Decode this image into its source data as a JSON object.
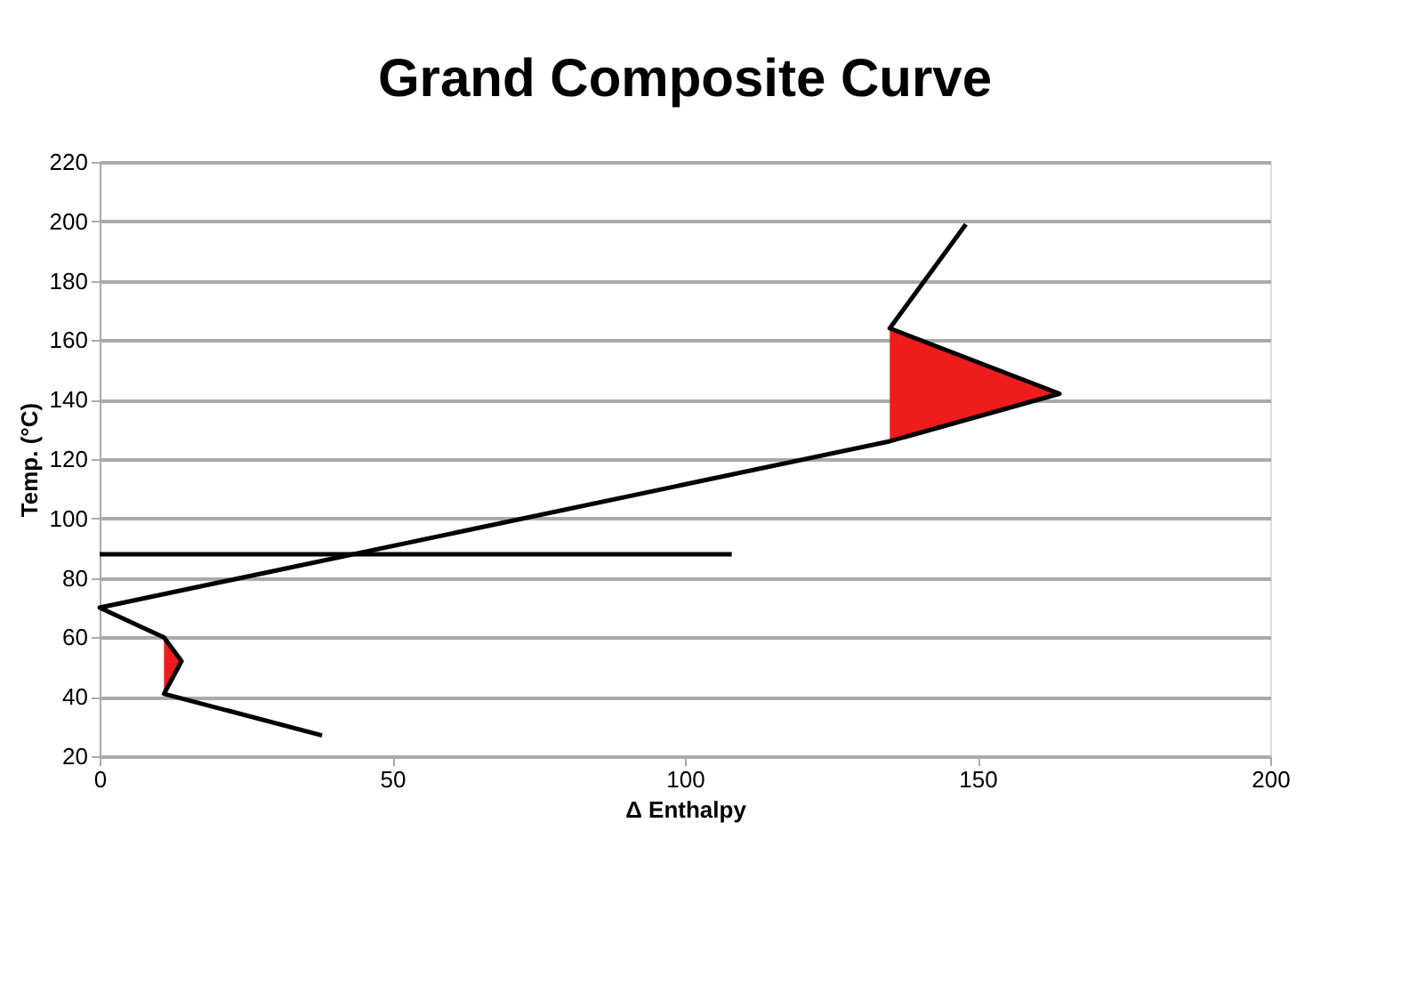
{
  "chart_data": {
    "type": "line",
    "title": "Grand Composite Curve",
    "xlabel": "Δ Enthalpy",
    "ylabel": "Temp. (°C)",
    "xlim": [
      0,
      200
    ],
    "xticks": [
      0,
      50,
      100,
      150,
      200
    ],
    "ylim": [
      20,
      220
    ],
    "yticks": [
      20,
      40,
      60,
      80,
      100,
      120,
      140,
      160,
      180,
      200,
      220
    ],
    "grid": "y",
    "series": [
      {
        "color": "#000000",
        "x": [
          148,
          135,
          164,
          135,
          0,
          11,
          14,
          11,
          38
        ],
        "values": [
          199,
          164,
          142,
          126,
          70,
          60,
          52,
          41,
          27
        ]
      },
      {
        "color": "#000000",
        "x": [
          0,
          108
        ],
        "values": [
          88,
          88
        ]
      },
      {
        "type": "area",
        "color": "#ee1c1c",
        "x": [
          135,
          164,
          135
        ],
        "values": [
          126,
          142,
          164
        ]
      },
      {
        "type": "area",
        "color": "#ee1c1c",
        "x": [
          11,
          14,
          11
        ],
        "values": [
          41,
          52,
          60
        ]
      }
    ]
  }
}
